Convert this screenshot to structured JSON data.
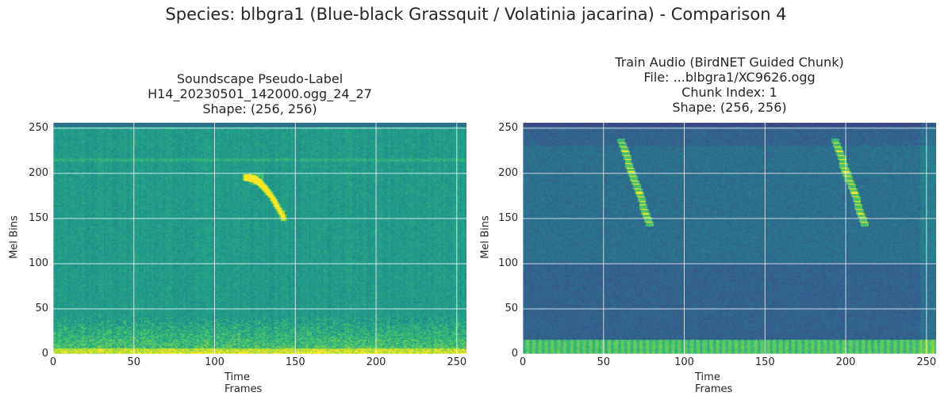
{
  "figure": {
    "suptitle": "Species: blbgra1 (Blue-black Grassquit / Volatinia jacarina) - Comparison 4"
  },
  "chart_data": [
    {
      "type": "heatmap",
      "title_lines": [
        "Soundscape Pseudo-Label",
        "H14_20230501_142000.ogg_24_27",
        "Shape: (256, 256)"
      ],
      "xlabel": "Time Frames",
      "ylabel": "Mel Bins",
      "xlim": [
        0,
        256
      ],
      "ylim": [
        0,
        256
      ],
      "xticks": [
        0,
        50,
        100,
        150,
        200,
        250
      ],
      "yticks": [
        0,
        50,
        100,
        150,
        200,
        250
      ],
      "grid": true,
      "colormap": "viridis",
      "shape": [
        256,
        256
      ]
    },
    {
      "type": "heatmap",
      "title_lines": [
        "Train Audio (BirdNET Guided Chunk)",
        "File: ...blbgra1/XC9626.ogg",
        "Chunk Index: 1",
        "Shape: (256, 256)"
      ],
      "xlabel": "Time Frames",
      "ylabel": "Mel Bins",
      "xlim": [
        0,
        256
      ],
      "ylim": [
        0,
        256
      ],
      "xticks": [
        0,
        50,
        100,
        150,
        200,
        250
      ],
      "yticks": [
        0,
        50,
        100,
        150,
        200,
        250
      ],
      "grid": true,
      "colormap": "viridis",
      "shape": [
        256,
        256
      ]
    }
  ]
}
